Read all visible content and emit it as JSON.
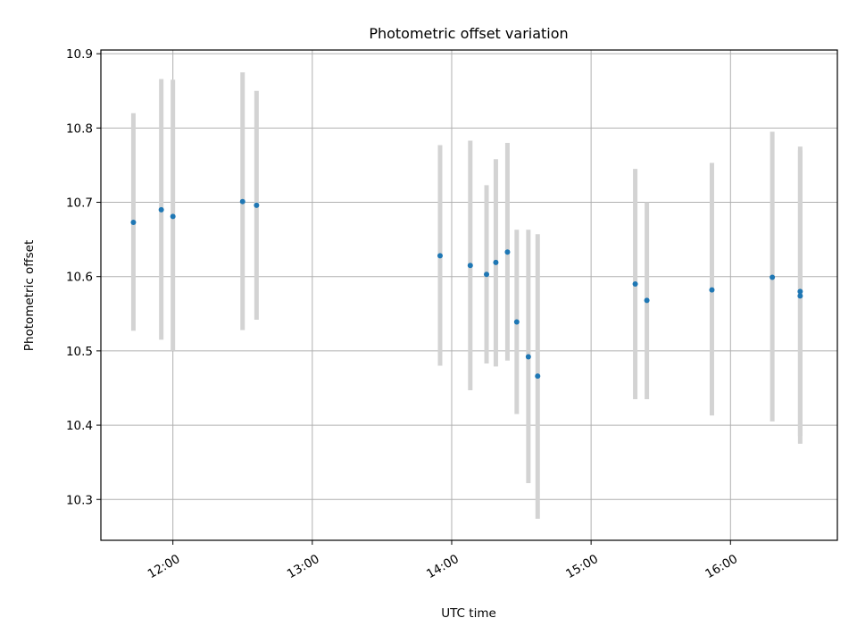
{
  "chart_data": {
    "type": "scatter",
    "title": "Photometric offset variation",
    "xlabel": "UTC time",
    "ylabel": "Photometric offset",
    "x_ticks": [
      "12:00",
      "13:00",
      "14:00",
      "15:00",
      "16:00"
    ],
    "y_ticks": [
      "10.3",
      "10.4",
      "10.5",
      "10.6",
      "10.7",
      "10.8",
      "10.9"
    ],
    "xlim": [
      "11:29",
      "16:46"
    ],
    "ylim": [
      10.245,
      10.905
    ],
    "grid": true,
    "series": [
      {
        "marker_color": "#1f77b4",
        "errorbar_color": "#d3d3d3",
        "points": [
          {
            "x": "11:43",
            "y": 10.673,
            "ylow": 10.527,
            "yhigh": 10.82
          },
          {
            "x": "11:55",
            "y": 10.69,
            "ylow": 10.515,
            "yhigh": 10.866
          },
          {
            "x": "12:00",
            "y": 10.681,
            "ylow": 10.5,
            "yhigh": 10.865
          },
          {
            "x": "12:30",
            "y": 10.701,
            "ylow": 10.528,
            "yhigh": 10.875
          },
          {
            "x": "12:36",
            "y": 10.696,
            "ylow": 10.542,
            "yhigh": 10.85
          },
          {
            "x": "13:55",
            "y": 10.628,
            "ylow": 10.48,
            "yhigh": 10.777
          },
          {
            "x": "14:08",
            "y": 10.615,
            "ylow": 10.447,
            "yhigh": 10.783
          },
          {
            "x": "14:15",
            "y": 10.603,
            "ylow": 10.483,
            "yhigh": 10.723
          },
          {
            "x": "14:19",
            "y": 10.619,
            "ylow": 10.479,
            "yhigh": 10.758
          },
          {
            "x": "14:24",
            "y": 10.633,
            "ylow": 10.487,
            "yhigh": 10.78
          },
          {
            "x": "14:28",
            "y": 10.539,
            "ylow": 10.415,
            "yhigh": 10.663
          },
          {
            "x": "14:33",
            "y": 10.492,
            "ylow": 10.322,
            "yhigh": 10.663
          },
          {
            "x": "14:37",
            "y": 10.466,
            "ylow": 10.274,
            "yhigh": 10.657
          },
          {
            "x": "15:19",
            "y": 10.59,
            "ylow": 10.435,
            "yhigh": 10.745
          },
          {
            "x": "15:24",
            "y": 10.568,
            "ylow": 10.435,
            "yhigh": 10.7
          },
          {
            "x": "15:52",
            "y": 10.582,
            "ylow": 10.413,
            "yhigh": 10.753
          },
          {
            "x": "16:18",
            "y": 10.599,
            "ylow": 10.405,
            "yhigh": 10.795
          },
          {
            "x": "16:30",
            "y": 10.58,
            "ylow": 10.385,
            "yhigh": 10.775
          },
          {
            "x": "16:30",
            "y": 10.574,
            "ylow": 10.375,
            "yhigh": 10.77
          }
        ]
      }
    ]
  }
}
